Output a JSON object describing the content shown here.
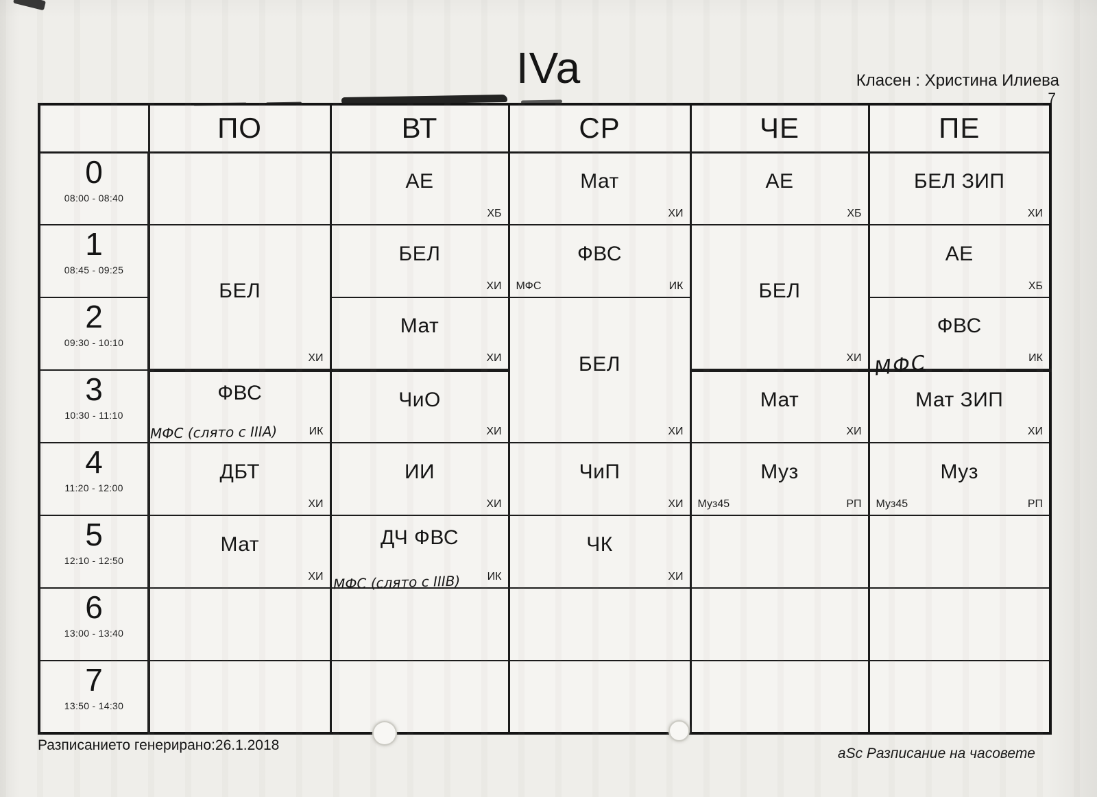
{
  "page": {
    "class_title": "IVa",
    "teacher_label": "Класен : Христина Илиева",
    "page_number": "7",
    "footer_left": "Разписанието генерирано:26.1.2018",
    "footer_right": "aSc Разписание на часовете"
  },
  "table": {
    "day_headers": [
      "ПО",
      "ВТ",
      "СР",
      "ЧЕ",
      "ПЕ"
    ],
    "periods": [
      {
        "num": "0",
        "time": "08:00 - 08:40"
      },
      {
        "num": "1",
        "time": "08:45 - 09:25"
      },
      {
        "num": "2",
        "time": "09:30 - 10:10"
      },
      {
        "num": "3",
        "time": "10:30 - 11:10"
      },
      {
        "num": "4",
        "time": "11:20 - 12:00"
      },
      {
        "num": "5",
        "time": "12:10 - 12:50"
      },
      {
        "num": "6",
        "time": "13:00 - 13:40"
      },
      {
        "num": "7",
        "time": "13:50 - 14:30"
      }
    ]
  },
  "schedule": {
    "mon": {
      "r1_2": {
        "subject": "БЕЛ",
        "teacher": "ХИ"
      },
      "r3": {
        "subject": "ФВС",
        "teacher": "ИК",
        "handwriting": "МФС (слято с IIIА)"
      },
      "r4": {
        "subject": "ДБТ",
        "teacher": "ХИ"
      },
      "r5": {
        "subject": "Мат",
        "teacher": "ХИ"
      }
    },
    "tue": {
      "r0": {
        "subject": "АЕ",
        "teacher": "ХБ"
      },
      "r1": {
        "subject": "БЕЛ",
        "teacher": "ХИ"
      },
      "r2": {
        "subject": "Мат",
        "teacher": "ХИ"
      },
      "r3": {
        "subject": "ЧиО",
        "teacher": "ХИ"
      },
      "r4": {
        "subject": "ИИ",
        "teacher": "ХИ"
      },
      "r5": {
        "subject": "ДЧ ФВС",
        "teacher": "ИК",
        "handwriting": "МФС (слято с IIIВ)"
      }
    },
    "wed": {
      "r0": {
        "subject": "Мат",
        "teacher": "ХИ"
      },
      "r1": {
        "subject": "ФВС",
        "left_code": "МФС",
        "teacher": "ИК"
      },
      "r2_3": {
        "subject": "БЕЛ",
        "teacher": "ХИ"
      },
      "r4": {
        "subject": "ЧиП",
        "teacher": "ХИ"
      },
      "r5": {
        "subject": "ЧК",
        "teacher": "ХИ"
      }
    },
    "thu": {
      "r0": {
        "subject": "АЕ",
        "teacher": "ХБ"
      },
      "r1_2": {
        "subject": "БЕЛ",
        "teacher": "ХИ"
      },
      "r3": {
        "subject": "Мат",
        "teacher": "ХИ"
      },
      "r4": {
        "subject": "Муз",
        "left_code": "Муз45",
        "teacher": "РП"
      }
    },
    "fri": {
      "r0": {
        "subject": "БЕЛ ЗИП",
        "teacher": "ХИ"
      },
      "r1": {
        "subject": "АЕ",
        "teacher": "ХБ"
      },
      "r2": {
        "subject": "ФВС",
        "teacher": "ИК",
        "handwriting": "МФС"
      },
      "r3": {
        "subject": "Мат ЗИП",
        "teacher": "ХИ"
      },
      "r4": {
        "subject": "Муз",
        "left_code": "Муз45",
        "teacher": "РП"
      }
    }
  }
}
